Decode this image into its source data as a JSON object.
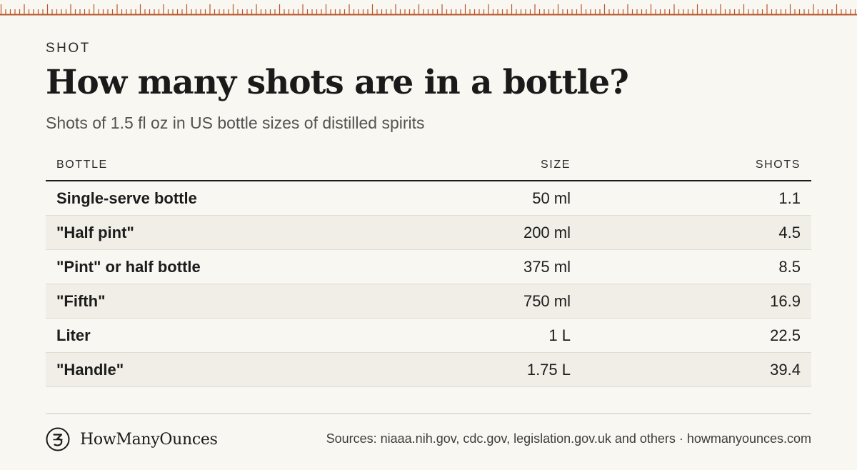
{
  "header": {
    "kicker": "SHOT",
    "title": "How many shots are in a bottle?",
    "subtitle": "Shots of 1.5 fl oz in US bottle sizes of distilled spirits"
  },
  "chart_data": {
    "type": "table",
    "columns": [
      "BOTTLE",
      "SIZE",
      "SHOTS"
    ],
    "rows": [
      {
        "bottle": "Single-serve bottle",
        "size": "50 ml",
        "shots": "1.1"
      },
      {
        "bottle": "\"Half pint\"",
        "size": "200 ml",
        "shots": "4.5"
      },
      {
        "bottle": "\"Pint\" or half bottle",
        "size": "375 ml",
        "shots": "8.5"
      },
      {
        "bottle": "\"Fifth\"",
        "size": "750 ml",
        "shots": "16.9"
      },
      {
        "bottle": "Liter",
        "size": "1 L",
        "shots": "22.5"
      },
      {
        "bottle": "\"Handle\"",
        "size": "1.75 L",
        "shots": "39.4"
      }
    ]
  },
  "footer": {
    "brand": "HowManyOunces",
    "sources": "Sources: niaaa.nih.gov, cdc.gov, legislation.gov.uk and others · howmanyounces.com"
  },
  "colors": {
    "background": "#f9f7f2",
    "ruler": "#b8562a",
    "row_alt": "#f1eee7",
    "text": "#1c1c1c"
  },
  "icons": {
    "brand_logo": "circled-ounce-mark-icon"
  }
}
